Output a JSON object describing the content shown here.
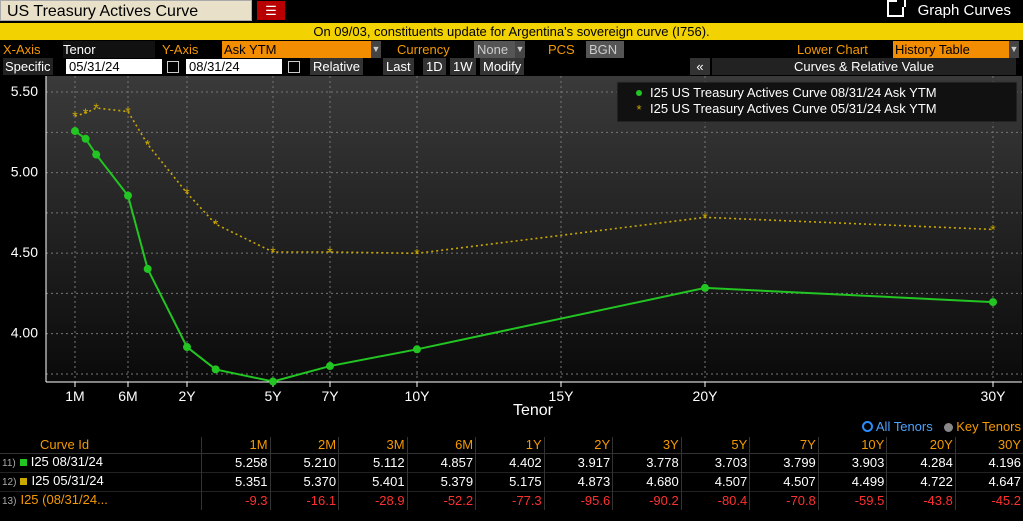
{
  "header": {
    "title": "US Treasury Actives Curve",
    "dropdown_icon": "menu-dropdown-icon",
    "graph_curves_label": "Graph Curves",
    "banner": "On 09/03, constituents update for Argentina's sovereign curve (I756)."
  },
  "params": {
    "xaxis_label": "X-Axis",
    "xaxis_value": "Tenor",
    "yaxis_label": "Y-Axis",
    "yaxis_value": "Ask YTM",
    "currency_label": "Currency",
    "currency_value": "None",
    "pcs_label": "PCS",
    "pcs_value": "BGN",
    "lower_chart_label": "Lower Chart",
    "lower_chart_value": "History Table",
    "specific_label": "Specific",
    "date1": "05/31/24",
    "date2": "08/31/24",
    "relative_label": "Relative",
    "last_label": "Last",
    "d1_label": "1D",
    "w1_label": "1W",
    "modify_label": "Modify",
    "collapse_label": "«",
    "panel_title": "Curves & Relative Value"
  },
  "chart_data": {
    "type": "line",
    "xlabel": "Tenor",
    "ylabel": "",
    "categories_labeled": [
      "1M",
      "6M",
      "2Y",
      "5Y",
      "7Y",
      "10Y",
      "15Y",
      "20Y",
      "30Y"
    ],
    "ylim": [
      3.7,
      5.55
    ],
    "yticks": [
      "5.50",
      "5.00",
      "4.50",
      "4.00"
    ],
    "grid": true,
    "legend_position": "top-right",
    "series": [
      {
        "name": "I25 US Treasury Actives Curve 08/31/24 Ask YTM",
        "color": "#22c522",
        "style": "solid",
        "marker": "circle",
        "x_years": [
          0.0833,
          0.1667,
          0.25,
          0.5,
          1,
          2,
          3,
          5,
          7,
          10,
          20,
          30
        ],
        "values": [
          5.258,
          5.21,
          5.112,
          4.857,
          4.402,
          3.917,
          3.778,
          3.703,
          3.799,
          3.903,
          4.284,
          4.196
        ]
      },
      {
        "name": "I25 US Treasury Actives Curve 05/31/24 Ask YTM",
        "color": "#c9a800",
        "style": "dotted",
        "marker": "star",
        "x_years": [
          0.0833,
          0.1667,
          0.25,
          0.5,
          1,
          2,
          3,
          5,
          7,
          10,
          20,
          30
        ],
        "values": [
          5.351,
          5.37,
          5.401,
          5.379,
          5.175,
          4.873,
          4.68,
          4.507,
          4.507,
          4.499,
          4.722,
          4.647
        ]
      }
    ]
  },
  "tenor_toggle": {
    "all_label": "All Tenors",
    "key_label": "Key Tenors"
  },
  "table": {
    "header_first": "Curve Id",
    "columns": [
      "1M",
      "2M",
      "3M",
      "6M",
      "1Y",
      "2Y",
      "3Y",
      "5Y",
      "7Y",
      "10Y",
      "20Y",
      "30Y"
    ],
    "rows": [
      {
        "num": "11)",
        "marker_color": "#22c522",
        "id": "I25 08/31/24",
        "values": [
          "5.258",
          "5.210",
          "5.112",
          "4.857",
          "4.402",
          "3.917",
          "3.778",
          "3.703",
          "3.799",
          "3.903",
          "4.284",
          "4.196"
        ]
      },
      {
        "num": "12)",
        "marker_color": "#c9a800",
        "id": "I25 05/31/24",
        "values": [
          "5.351",
          "5.370",
          "5.401",
          "5.379",
          "5.175",
          "4.873",
          "4.680",
          "4.507",
          "4.507",
          "4.499",
          "4.722",
          "4.647"
        ]
      },
      {
        "num": "13)",
        "marker_color": "",
        "id": "I25 (08/31/24...",
        "values": [
          "-9.3",
          "-16.1",
          "-28.9",
          "-52.2",
          "-77.3",
          "-95.6",
          "-90.2",
          "-80.4",
          "-70.8",
          "-59.5",
          "-43.8",
          "-45.2"
        ]
      }
    ]
  }
}
